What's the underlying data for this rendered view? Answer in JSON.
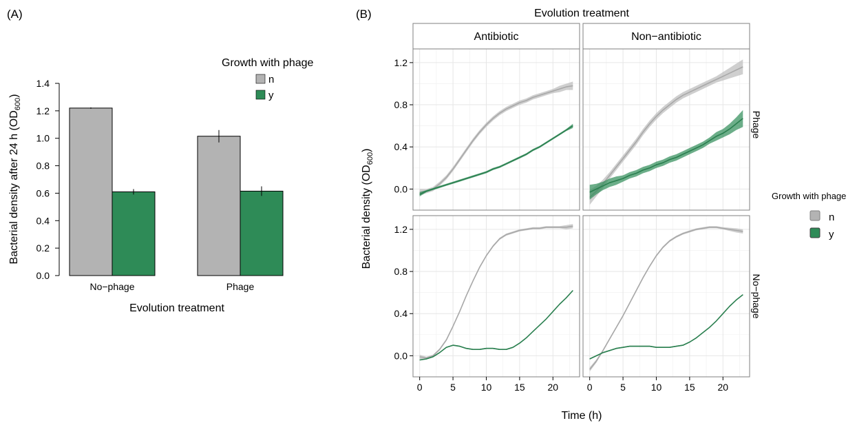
{
  "colors": {
    "n": "#b3b3b3",
    "y": "#2e8b57",
    "n_band": "#bfbfbf",
    "y_band": "#2e8b57",
    "grid": "#e6e6e6",
    "frame": "#7f7f7f"
  },
  "panel_a": {
    "tag": "(A)",
    "legend_title": "Growth with phage",
    "legend_labels": [
      "n",
      "y"
    ],
    "ylabel_main": "Bacterial density after 24 h (OD",
    "ylabel_sub": "600",
    "ylabel_close": ")",
    "xlabel": "Evolution treatment"
  },
  "panel_b": {
    "tag": "(B)",
    "top_title": "Evolution treatment",
    "col_strips": [
      "Antibiotic",
      "Non−antibiotic"
    ],
    "row_strips": [
      "Phage",
      "No−phage"
    ],
    "legend_title": "Growth with phage",
    "legend_labels": [
      "n",
      "y"
    ],
    "ylabel_main": "Bacterial density (OD",
    "ylabel_sub": "600",
    "ylabel_close": ")",
    "xlabel": "Time (h)"
  },
  "chart_data": [
    {
      "type": "bar",
      "title": "",
      "xlabel": "Evolution treatment",
      "ylabel": "Bacterial density after 24 h (OD600)",
      "categories": [
        "No−phage",
        "Phage"
      ],
      "series": [
        {
          "name": "n",
          "values": [
            1.22,
            1.015
          ],
          "error": [
            0.005,
            0.045
          ]
        },
        {
          "name": "y",
          "values": [
            0.61,
            0.615
          ],
          "error": [
            0.02,
            0.035
          ]
        }
      ],
      "ylim": [
        0,
        1.4
      ],
      "yticks": [
        0.0,
        0.2,
        0.4,
        0.6,
        0.8,
        1.0,
        1.2,
        1.4
      ],
      "legend": "top-right",
      "grid": false
    },
    {
      "type": "line",
      "title": "Evolution treatment",
      "xlabel": "Time (h)",
      "ylabel": "Bacterial density (OD600)",
      "xlim": [
        -1,
        24
      ],
      "ylim": [
        -0.2,
        1.33
      ],
      "xticks": [
        0,
        5,
        10,
        15,
        20
      ],
      "yticks": [
        0.0,
        0.4,
        0.8,
        1.2
      ],
      "grid": true,
      "legend": "right",
      "x": [
        0,
        1,
        2,
        3,
        4,
        5,
        6,
        7,
        8,
        9,
        10,
        11,
        12,
        13,
        14,
        15,
        16,
        17,
        18,
        19,
        20,
        21,
        22,
        23
      ],
      "facets": [
        {
          "column": "Antibiotic",
          "row": "Phage",
          "series": [
            {
              "name": "n",
              "values": [
                -0.03,
                -0.02,
                0.0,
                0.05,
                0.11,
                0.19,
                0.28,
                0.37,
                0.46,
                0.54,
                0.61,
                0.67,
                0.72,
                0.76,
                0.79,
                0.82,
                0.84,
                0.87,
                0.89,
                0.91,
                0.93,
                0.95,
                0.97,
                0.98
              ],
              "band": [
                0.03,
                0.02,
                0.02,
                0.02,
                0.02,
                0.02,
                0.02,
                0.02,
                0.02,
                0.02,
                0.02,
                0.02,
                0.02,
                0.02,
                0.02,
                0.02,
                0.02,
                0.02,
                0.02,
                0.02,
                0.02,
                0.03,
                0.03,
                0.04
              ]
            },
            {
              "name": "y",
              "values": [
                -0.05,
                -0.02,
                0.0,
                0.02,
                0.04,
                0.06,
                0.08,
                0.1,
                0.12,
                0.14,
                0.16,
                0.19,
                0.21,
                0.24,
                0.27,
                0.3,
                0.33,
                0.37,
                0.4,
                0.44,
                0.48,
                0.52,
                0.56,
                0.6
              ],
              "band": [
                0.02,
                0.01,
                0.01,
                0.01,
                0.01,
                0.01,
                0.01,
                0.01,
                0.01,
                0.01,
                0.01,
                0.01,
                0.01,
                0.01,
                0.01,
                0.01,
                0.01,
                0.01,
                0.01,
                0.01,
                0.01,
                0.01,
                0.01,
                0.02
              ]
            }
          ]
        },
        {
          "column": "Non−antibiotic",
          "row": "Phage",
          "series": [
            {
              "name": "n",
              "values": [
                -0.08,
                -0.02,
                0.05,
                0.13,
                0.21,
                0.29,
                0.37,
                0.45,
                0.54,
                0.62,
                0.69,
                0.75,
                0.8,
                0.85,
                0.89,
                0.92,
                0.95,
                0.98,
                1.01,
                1.04,
                1.07,
                1.1,
                1.13,
                1.16
              ],
              "band": [
                0.07,
                0.05,
                0.04,
                0.03,
                0.03,
                0.03,
                0.03,
                0.03,
                0.03,
                0.03,
                0.03,
                0.03,
                0.03,
                0.03,
                0.03,
                0.03,
                0.03,
                0.03,
                0.03,
                0.03,
                0.04,
                0.05,
                0.06,
                0.07
              ]
            },
            {
              "name": "y",
              "values": [
                -0.03,
                0.0,
                0.03,
                0.06,
                0.08,
                0.1,
                0.13,
                0.15,
                0.18,
                0.2,
                0.23,
                0.25,
                0.28,
                0.3,
                0.33,
                0.36,
                0.39,
                0.42,
                0.46,
                0.5,
                0.53,
                0.57,
                0.62,
                0.67
              ],
              "band": [
                0.07,
                0.05,
                0.04,
                0.04,
                0.04,
                0.03,
                0.03,
                0.03,
                0.03,
                0.03,
                0.03,
                0.03,
                0.03,
                0.03,
                0.03,
                0.03,
                0.03,
                0.03,
                0.03,
                0.04,
                0.04,
                0.05,
                0.06,
                0.08
              ]
            }
          ]
        },
        {
          "column": "Antibiotic",
          "row": "No−phage",
          "series": [
            {
              "name": "n",
              "values": [
                -0.01,
                -0.02,
                0.0,
                0.06,
                0.15,
                0.28,
                0.42,
                0.57,
                0.71,
                0.84,
                0.95,
                1.04,
                1.11,
                1.15,
                1.17,
                1.19,
                1.2,
                1.21,
                1.21,
                1.22,
                1.22,
                1.22,
                1.22,
                1.23
              ],
              "band": [
                0.02,
                0.01,
                0.01,
                0.01,
                0.01,
                0.01,
                0.01,
                0.01,
                0.01,
                0.01,
                0.01,
                0.01,
                0.01,
                0.01,
                0.01,
                0.01,
                0.01,
                0.01,
                0.01,
                0.01,
                0.01,
                0.01,
                0.02,
                0.02
              ]
            },
            {
              "name": "y",
              "values": [
                -0.04,
                -0.03,
                -0.01,
                0.03,
                0.08,
                0.1,
                0.09,
                0.07,
                0.06,
                0.06,
                0.07,
                0.07,
                0.06,
                0.06,
                0.08,
                0.12,
                0.17,
                0.23,
                0.29,
                0.35,
                0.42,
                0.49,
                0.55,
                0.62
              ],
              "band": [
                0.005,
                0.005,
                0.005,
                0.005,
                0.005,
                0.005,
                0.005,
                0.005,
                0.005,
                0.005,
                0.005,
                0.005,
                0.005,
                0.005,
                0.005,
                0.005,
                0.005,
                0.005,
                0.005,
                0.005,
                0.005,
                0.005,
                0.005,
                0.005
              ]
            }
          ]
        },
        {
          "column": "Non−antibiotic",
          "row": "No−phage",
          "series": [
            {
              "name": "n",
              "values": [
                -0.13,
                -0.05,
                0.05,
                0.16,
                0.27,
                0.38,
                0.5,
                0.62,
                0.74,
                0.85,
                0.95,
                1.03,
                1.09,
                1.13,
                1.16,
                1.18,
                1.2,
                1.21,
                1.22,
                1.22,
                1.21,
                1.2,
                1.19,
                1.18
              ],
              "band": [
                0.02,
                0.015,
                0.01,
                0.01,
                0.01,
                0.01,
                0.01,
                0.01,
                0.01,
                0.01,
                0.01,
                0.01,
                0.01,
                0.01,
                0.01,
                0.01,
                0.01,
                0.01,
                0.01,
                0.01,
                0.01,
                0.015,
                0.02,
                0.02
              ]
            },
            {
              "name": "y",
              "values": [
                -0.03,
                0.0,
                0.03,
                0.05,
                0.07,
                0.08,
                0.09,
                0.09,
                0.09,
                0.09,
                0.08,
                0.08,
                0.08,
                0.09,
                0.1,
                0.13,
                0.17,
                0.22,
                0.27,
                0.33,
                0.4,
                0.47,
                0.53,
                0.58
              ],
              "band": [
                0.005,
                0.005,
                0.005,
                0.005,
                0.005,
                0.005,
                0.005,
                0.005,
                0.005,
                0.005,
                0.005,
                0.005,
                0.005,
                0.005,
                0.005,
                0.005,
                0.005,
                0.005,
                0.005,
                0.005,
                0.005,
                0.005,
                0.005,
                0.005
              ]
            }
          ]
        }
      ]
    }
  ]
}
